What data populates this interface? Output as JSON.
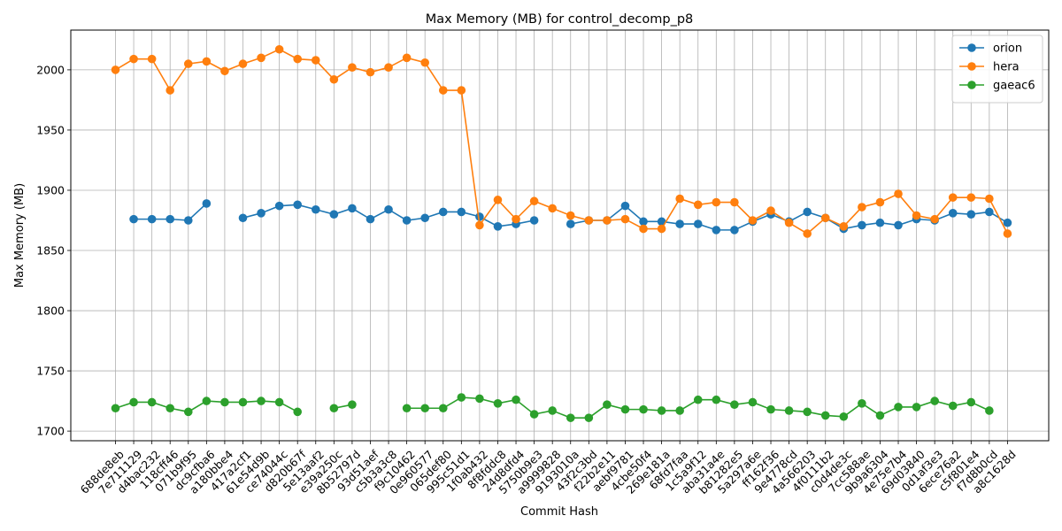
{
  "chart_data": {
    "type": "line",
    "title": "Max Memory (MB) for control_decomp_p8",
    "xlabel": "Commit Hash",
    "ylabel": "Max Memory (MB)",
    "ylim": [
      1692,
      2033
    ],
    "yticks": [
      1700,
      1750,
      1800,
      1850,
      1900,
      1950,
      2000
    ],
    "grid": true,
    "legend_position": "top-right",
    "categories": [
      "688de8eb",
      "7e711129",
      "d4bac232",
      "118cff46",
      "071b9f95",
      "dc9cfba6",
      "a180bbe4",
      "417a2cf1",
      "61e54d9b",
      "ce74044c",
      "d820b67f",
      "5e13aaf2",
      "e39a250c",
      "8b52797d",
      "93d51aef",
      "c5b3a3c8",
      "f9c10462",
      "0e960577",
      "065def80",
      "995c51d1",
      "1f0ab432",
      "8f8fddc8",
      "24d8dfd4",
      "5750b9e3",
      "a9999828",
      "9193010a",
      "43f2c3bd",
      "f22b2e11",
      "aebf9781",
      "4cbe50f4",
      "269e181a",
      "68fd7faa",
      "1c5a9f12",
      "aba31a4e",
      "b81282e5",
      "5a297a6e",
      "ff162f36",
      "9e4778cd",
      "4a566203",
      "4f0111b2",
      "c0d4de3c",
      "7cc588ae",
      "9b9a6304",
      "4e75e7b4",
      "69d03840",
      "0d1af3e3",
      "6ece76a2",
      "c5f801e4",
      "f7d8b0cd",
      "a8c1628d"
    ],
    "series": [
      {
        "name": "orion",
        "color": "#1f77b4",
        "values": [
          null,
          1876,
          1876,
          1876,
          1875,
          1889,
          null,
          1877,
          1881,
          1887,
          1888,
          1884,
          1880,
          1885,
          1876,
          1884,
          1875,
          1877,
          1882,
          1882,
          1878,
          1870,
          1872,
          1875,
          null,
          1872,
          1875,
          1875,
          1887,
          1874,
          1874,
          1872,
          1872,
          1867,
          1867,
          1874,
          1880,
          1874,
          1882,
          1877,
          1868,
          1871,
          1873,
          1871,
          1876,
          1875,
          1881,
          1880,
          1882,
          1873
        ]
      },
      {
        "name": "hera",
        "color": "#ff7f0e",
        "values": [
          2000,
          2009,
          2009,
          1983,
          2005,
          2007,
          1999,
          2005,
          2010,
          2017,
          2009,
          2008,
          1992,
          2002,
          1998,
          2002,
          2010,
          2006,
          1983,
          1983,
          1871,
          1892,
          1876,
          1891,
          1885,
          1879,
          1875,
          1875,
          1876,
          1868,
          1868,
          1893,
          1888,
          1890,
          1890,
          1875,
          1883,
          1873,
          1864,
          1877,
          1870,
          1886,
          1890,
          1897,
          1879,
          1876,
          1894,
          1894,
          1893,
          1864
        ]
      },
      {
        "name": "gaeac6",
        "color": "#2ca02c",
        "values": [
          1719,
          1724,
          1724,
          1719,
          1716,
          1725,
          1724,
          1724,
          1725,
          1724,
          1716,
          null,
          1719,
          1722,
          null,
          null,
          1719,
          1719,
          1719,
          1728,
          1727,
          1723,
          1726,
          1714,
          1717,
          1711,
          1711,
          1722,
          1718,
          1718,
          1717,
          1717,
          1726,
          1726,
          1722,
          1724,
          1718,
          1717,
          1716,
          1713,
          1712,
          1723,
          1713,
          1720,
          1720,
          1725,
          1721,
          1724,
          1717,
          null
        ]
      }
    ]
  }
}
